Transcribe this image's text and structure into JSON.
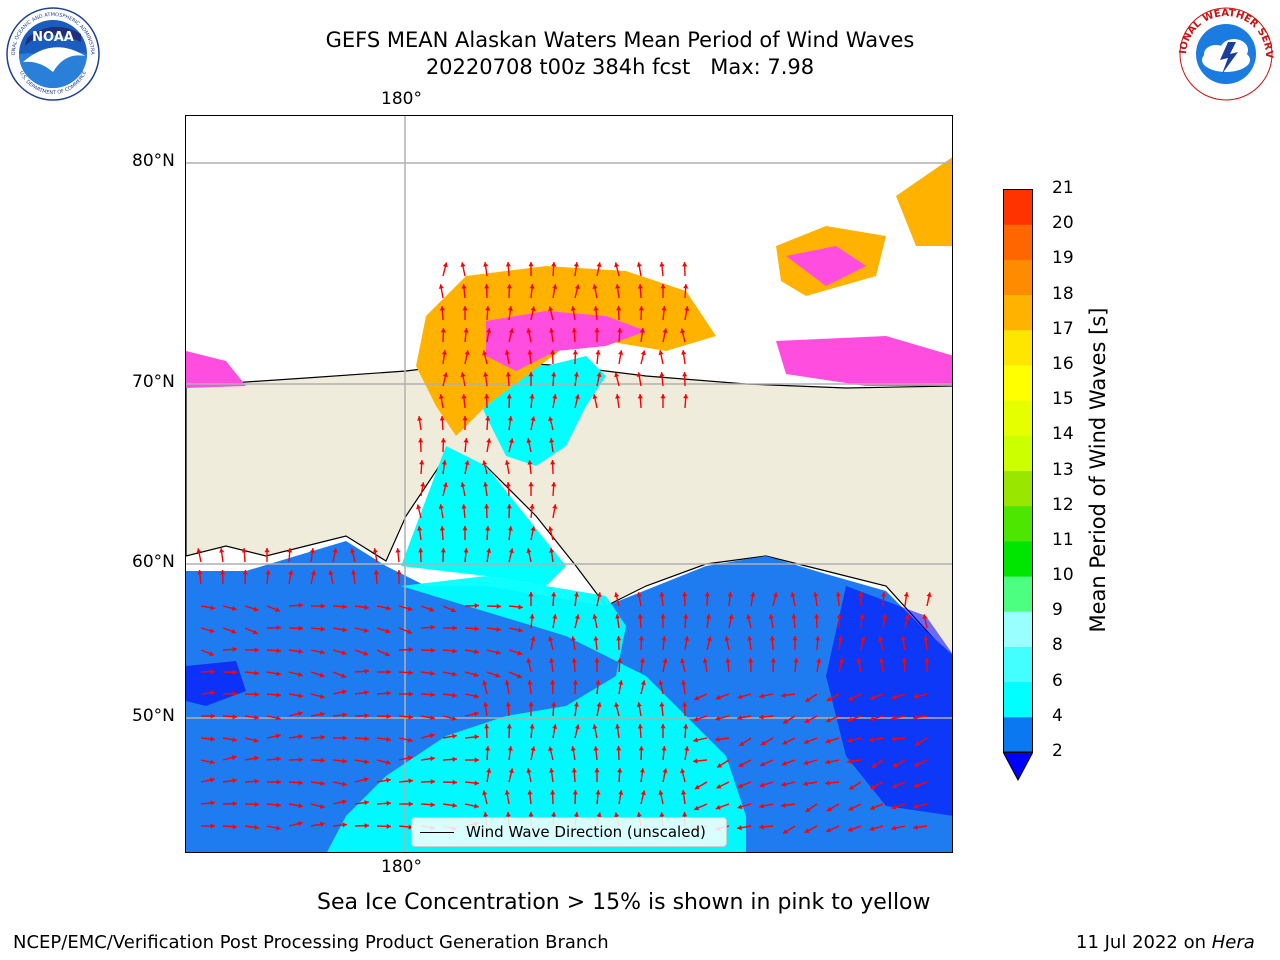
{
  "title": {
    "line1": "GEFS MEAN Alaskan Waters Mean Period of Wind Waves",
    "line2": "20220708 t00z 384h fcst   Max: 7.98"
  },
  "logos": {
    "left_text_top": "NATIONAL OCEANIC AND ATMOSPHERIC ADMINISTRATION",
    "left_text_bottom": "U.S. DEPARTMENT OF COMMERCE",
    "left_center": "NOAA",
    "right_text": "NATIONAL WEATHER SERVICE"
  },
  "map": {
    "lon_labels": {
      "top": "180°",
      "bottom": "180°"
    },
    "lat_labels": [
      "80°N",
      "70°N",
      "60°N",
      "50°N"
    ],
    "legend_label": "Wind Wave Direction (unscaled)",
    "colors": {
      "land": "#f0ecdc",
      "ocean_low": "#1e7cf0",
      "ocean_mid": "#00ffff",
      "ocean_lowest": "#0000ff",
      "ice_pink": "#ff4de0",
      "ice_orange": "#ffb300",
      "ice_yellow": "#ffe14d",
      "arrow": "#ff0000"
    }
  },
  "colorbar": {
    "title": "Mean Period of Wind Waves [s]",
    "ticks": [
      "2",
      "4",
      "6",
      "8",
      "9",
      "10",
      "11",
      "12",
      "13",
      "14",
      "15",
      "16",
      "17",
      "18",
      "19",
      "20",
      "21"
    ],
    "colors": [
      "#0a78f0",
      "#00ffff",
      "#44ffff",
      "#99ffff",
      "#4dff80",
      "#00e600",
      "#4ce600",
      "#99e600",
      "#ccff00",
      "#e6ff00",
      "#ffff00",
      "#ffe600",
      "#ffb300",
      "#ff8c00",
      "#ff6600",
      "#ff3300",
      "#ff0000"
    ],
    "extend_color": "#0000ff"
  },
  "note": "Sea Ice Concentration > 15% is shown in pink to yellow",
  "footer": {
    "left": "NCEP/EMC/Verification Post Processing Product Generation Branch",
    "right_date": "11 Jul 2022 on ",
    "right_host": "Hera"
  }
}
